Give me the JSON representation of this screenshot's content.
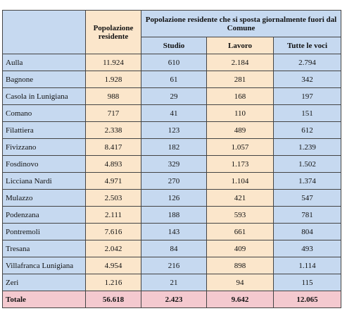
{
  "table": {
    "header": {
      "population": "Popolazione residente",
      "commuters": "Popolazione residente che si sposta giornalmente fuori dal Comune"
    },
    "subheaders": [
      "Studio",
      "Lavoro",
      "Tutte le voci"
    ],
    "rows": [
      [
        "Aulla",
        "11.924",
        "610",
        "2.184",
        "2.794"
      ],
      [
        "Bagnone",
        "1.928",
        "61",
        "281",
        "342"
      ],
      [
        "Casola in Lunigiana",
        "988",
        "29",
        "168",
        "197"
      ],
      [
        "Comano",
        "717",
        "41",
        "110",
        "151"
      ],
      [
        "Filattiera",
        "2.338",
        "123",
        "489",
        "612"
      ],
      [
        "Fivizzano",
        "8.417",
        "182",
        "1.057",
        "1.239"
      ],
      [
        "Fosdinovo",
        "4.893",
        "329",
        "1.173",
        "1.502"
      ],
      [
        "Licciana Nardi",
        "4.971",
        "270",
        "1.104",
        "1.374"
      ],
      [
        "Mulazzo",
        "2.503",
        "126",
        "421",
        "547"
      ],
      [
        "Podenzana",
        "2.111",
        "188",
        "593",
        "781"
      ],
      [
        "Pontremoli",
        "7.616",
        "143",
        "661",
        "804"
      ],
      [
        "Tresana",
        "2.042",
        "84",
        "409",
        "493"
      ],
      [
        "Villafranca Lunigiana",
        "4.954",
        "216",
        "898",
        "1.114"
      ],
      [
        "Zeri",
        "1.216",
        "21",
        "94",
        "115"
      ]
    ],
    "total": [
      "Totale",
      "56.618",
      "2.423",
      "9.642",
      "12.065"
    ]
  }
}
